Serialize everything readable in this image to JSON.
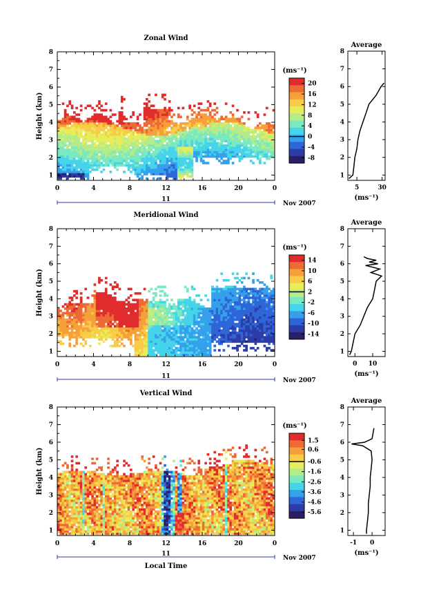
{
  "date_label": "Nov 2007",
  "day_label": "11",
  "x_axis_title": "Local Time",
  "unit_label": "(ms⁻¹)",
  "colors": [
    "#2a1e66",
    "#2d3da8",
    "#2e66d8",
    "#35a0ec",
    "#45d4ea",
    "#7ae8c0",
    "#b4ec8a",
    "#e6ec5a",
    "#f8cc46",
    "#f6a03c",
    "#ee6a34",
    "#e02c2c"
  ],
  "panels": [
    {
      "id": "zonal",
      "title": "Zonal Wind",
      "ylabel": "Height (km)",
      "y_range": [
        0.7,
        8
      ],
      "x_ticks": [
        "0",
        "4",
        "8",
        "12",
        "16",
        "20",
        "0"
      ],
      "y_ticks": [
        "1",
        "2",
        "3",
        "4",
        "5",
        "6",
        "7",
        "8"
      ],
      "colorbar_ticks": [
        "20",
        "16",
        "12",
        "8",
        "4",
        "0",
        "-4",
        "-8"
      ],
      "colorbar_range": [
        -10,
        22
      ],
      "avg": {
        "title": "Average",
        "x_ticks": [
          "5",
          "30"
        ],
        "x_range": [
          -4,
          33
        ],
        "heights": [
          0.8,
          1.0,
          1.5,
          2.0,
          2.5,
          3.0,
          3.5,
          4.0,
          4.5,
          5.0,
          5.5,
          6.0,
          6.2
        ],
        "values": [
          -3,
          1,
          2,
          3,
          5,
          6,
          8,
          11,
          14,
          17,
          24,
          29,
          32
        ]
      }
    },
    {
      "id": "meridional",
      "title": "Meridional Wind",
      "ylabel": "Height (km)",
      "y_range": [
        0.7,
        8
      ],
      "x_ticks": [
        "0",
        "4",
        "8",
        "12",
        "16",
        "20",
        "0"
      ],
      "y_ticks": [
        "1",
        "2",
        "3",
        "4",
        "5",
        "6",
        "7",
        "8"
      ],
      "colorbar_ticks": [
        "14",
        "10",
        "6",
        "2",
        "-2",
        "-6",
        "-10",
        "-14"
      ],
      "colorbar_range": [
        -16,
        16
      ],
      "avg": {
        "title": "Average",
        "x_ticks": [
          "0",
          "10"
        ],
        "x_range": [
          -4,
          17
        ],
        "heights": [
          0.8,
          1.0,
          1.5,
          2.0,
          2.5,
          3.0,
          3.5,
          4.0,
          4.5,
          5.0,
          5.3,
          5.5,
          5.7,
          5.9,
          6.0,
          6.1,
          6.2,
          6.3,
          6.4
        ],
        "values": [
          -3,
          -2,
          -1,
          0,
          3,
          5,
          7,
          10,
          11,
          12,
          15,
          9,
          14,
          6,
          13,
          8,
          12,
          7,
          5
        ]
      }
    },
    {
      "id": "vertical",
      "title": "Vertical Wind",
      "ylabel": "Height (km)",
      "y_range": [
        0.7,
        8
      ],
      "x_ticks": [
        "0",
        "4",
        "8",
        "12",
        "16",
        "20",
        "0"
      ],
      "y_ticks": [
        "1",
        "2",
        "3",
        "4",
        "5",
        "6",
        "7",
        "8"
      ],
      "colorbar_ticks": [
        "1.5",
        "0.6",
        "-0.6",
        "-1.6",
        "-2.6",
        "-3.6",
        "-4.6",
        "-5.6"
      ],
      "colorbar_range": [
        -6.2,
        2.2
      ],
      "avg": {
        "title": "Average",
        "x_ticks": [
          "-1",
          "0"
        ],
        "x_range": [
          -1.3,
          0.7
        ],
        "heights": [
          0.8,
          1.0,
          1.5,
          2.0,
          2.5,
          3.0,
          3.5,
          4.0,
          4.5,
          5.0,
          5.5,
          5.8,
          5.9,
          6.0,
          6.2,
          6.5,
          6.8
        ],
        "values": [
          -0.3,
          -0.3,
          -0.25,
          -0.2,
          -0.2,
          -0.15,
          -0.1,
          -0.1,
          -0.05,
          0.0,
          -0.05,
          -0.5,
          -1.1,
          -0.4,
          0.0,
          0.05,
          0.1
        ]
      }
    }
  ]
}
